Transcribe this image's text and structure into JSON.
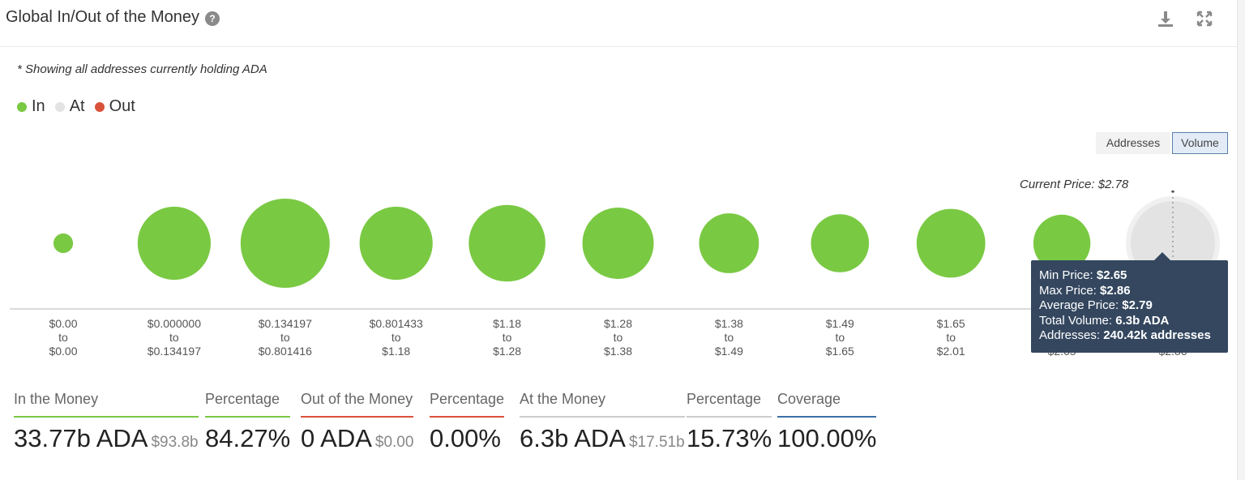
{
  "header": {
    "title": "Global In/Out of the Money",
    "help_icon": "question-icon",
    "download_icon": "download-icon",
    "fullscreen_icon": "fullscreen-icon"
  },
  "note": "* Showing all addresses currently holding ADA",
  "legend": [
    {
      "label": "In",
      "color": "#7ac943"
    },
    {
      "label": "At",
      "color": "#e3e3e3"
    },
    {
      "label": "Out",
      "color": "#d9533b"
    }
  ],
  "toggles": {
    "addresses": "Addresses",
    "volume": "Volume",
    "selected": "Volume"
  },
  "current_price": "Current Price: $2.78",
  "chart_data": {
    "type": "bubble",
    "series_colors": {
      "in": "#7ac943",
      "at": "#e3e3e3"
    },
    "buckets": [
      {
        "from": "$0.00",
        "to": "$0.00",
        "status": "in",
        "relative_size": 0.22
      },
      {
        "from": "$0.000000",
        "to": "$0.134197",
        "status": "in",
        "relative_size": 0.82
      },
      {
        "from": "$0.134197",
        "to": "$0.801416",
        "status": "in",
        "relative_size": 1.0
      },
      {
        "from": "$0.801433",
        "to": "$1.18",
        "status": "in",
        "relative_size": 0.82
      },
      {
        "from": "$1.18",
        "to": "$1.28",
        "status": "in",
        "relative_size": 0.86
      },
      {
        "from": "$1.28",
        "to": "$1.38",
        "status": "in",
        "relative_size": 0.8
      },
      {
        "from": "$1.38",
        "to": "$1.49",
        "status": "in",
        "relative_size": 0.67
      },
      {
        "from": "$1.49",
        "to": "$1.65",
        "status": "in",
        "relative_size": 0.65
      },
      {
        "from": "$1.65",
        "to": "$2.01",
        "status": "in",
        "relative_size": 0.77
      },
      {
        "from": "$2.01",
        "to": "$2.65",
        "status": "in",
        "relative_size": 0.64
      },
      {
        "from": "$2.65",
        "to": "$2.86",
        "status": "at",
        "relative_size": 1.0
      }
    ]
  },
  "tooltip": {
    "min_price_label": "Min Price:",
    "min_price": "$2.65",
    "max_price_label": "Max Price:",
    "max_price": "$2.86",
    "avg_price_label": "Average Price:",
    "avg_price": "$2.79",
    "total_volume_label": "Total Volume:",
    "total_volume": "6.3b ADA",
    "addresses_label": "Addresses:",
    "addresses": "240.42k addresses"
  },
  "stats": {
    "in_money": {
      "label": "In the Money",
      "value": "33.77b ADA",
      "usd": "$93.8b",
      "color": "#7ac943"
    },
    "in_pct": {
      "label": "Percentage",
      "value": "84.27%",
      "color": "#7ac943"
    },
    "out_money": {
      "label": "Out of the Money",
      "value": "0 ADA",
      "usd": "$0.00",
      "color": "#d9533b"
    },
    "out_pct": {
      "label": "Percentage",
      "value": "0.00%",
      "color": "#d9533b"
    },
    "at_money": {
      "label": "At the Money",
      "value": "6.3b ADA",
      "usd": "$17.51b",
      "color": "#cccccc"
    },
    "at_pct": {
      "label": "Percentage",
      "value": "15.73%",
      "color": "#cccccc"
    },
    "coverage": {
      "label": "Coverage",
      "value": "100.00%",
      "color": "#3b6fa6"
    }
  }
}
